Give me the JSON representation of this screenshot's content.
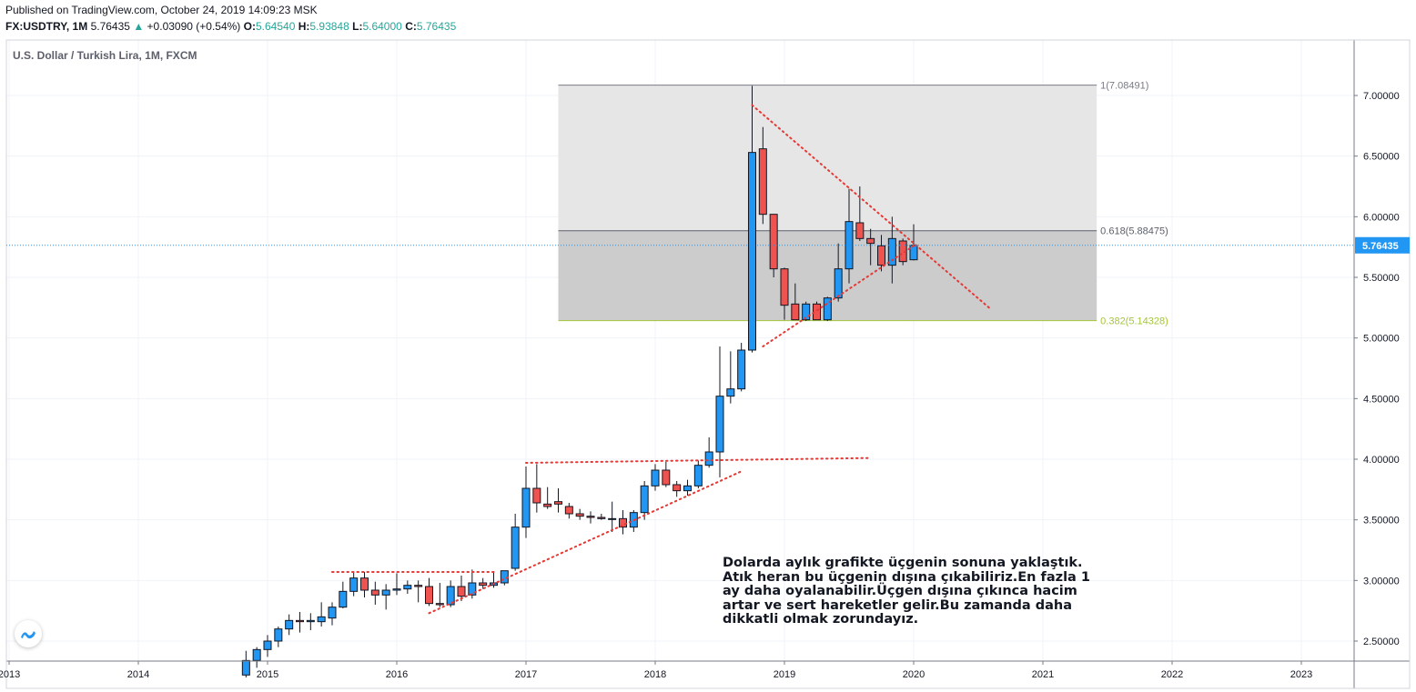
{
  "header": {
    "published": "Published on TradingView.com, October 24, 2019 14:09:23 MSK",
    "symbol": "FX:USDTRY, 1M",
    "last": "5.76435",
    "change_arrow": "▲",
    "change": "+0.03090 (+0.54%)",
    "o_label": "O:",
    "o_value": "5.64540",
    "h_label": "H:",
    "h_value": "5.93848",
    "l_label": "L:",
    "l_value": "5.64000",
    "c_label": "C:",
    "c_value": "5.76435"
  },
  "chart_title": "U.S. Dollar / Turkish Lira, 1M, FXCM",
  "note": "Dolarda aylık grafikte üçgenin sonuna yaklaştık.\nAtık heran bu üçgenin dışına çıkabiliriz.En fazla 1\nay daha oyalanabilir.Üçgen dışına çıkınca hacim\nartar ve sert hareketler gelir.Bu zamanda  daha\ndikkatli olmak zorundayız.",
  "logo_icon": "tradingview-logo-icon",
  "colors": {
    "up": "#2196f3",
    "down": "#ef5350",
    "wick": "#131722",
    "trend": "#e53935",
    "fib_green": "#a5c53a",
    "price_tag": "#2196f3"
  },
  "chart_data": {
    "type": "candlestick",
    "title": "U.S. Dollar / Turkish Lira, 1M, FXCM",
    "interval": "1M",
    "y_ticks": [
      "7.00000",
      "6.50000",
      "6.00000",
      "5.50000",
      "5.00000",
      "4.50000",
      "4.00000",
      "3.50000",
      "3.00000",
      "2.50000"
    ],
    "y_range": [
      2.42,
      7.35
    ],
    "x_ticks": [
      "2013",
      "2014",
      "2015",
      "2016",
      "2017",
      "2018",
      "2019",
      "2020",
      "2021",
      "2022",
      "2023"
    ],
    "x_range": [
      "2013-01",
      "2023-06"
    ],
    "grid": true,
    "last_price": "5.76435",
    "fibonacci": {
      "start": "2017-04",
      "end": "2021-06",
      "levels": [
        {
          "ratio": 1,
          "label": "1(7.08491)",
          "price": 7.08491
        },
        {
          "ratio": 0.618,
          "label": "0.618(5.88475)",
          "price": 5.88475
        },
        {
          "ratio": 0.382,
          "label": "0.382(5.14328)",
          "price": 5.14328
        }
      ]
    },
    "candles": [
      {
        "t": "2014-11",
        "o": 2.22,
        "h": 2.42,
        "l": 2.2,
        "c": 2.34
      },
      {
        "t": "2014-12",
        "o": 2.34,
        "h": 2.45,
        "l": 2.28,
        "c": 2.43
      },
      {
        "t": "2015-01",
        "o": 2.43,
        "h": 2.55,
        "l": 2.37,
        "c": 2.5
      },
      {
        "t": "2015-02",
        "o": 2.5,
        "h": 2.62,
        "l": 2.45,
        "c": 2.6
      },
      {
        "t": "2015-03",
        "o": 2.6,
        "h": 2.72,
        "l": 2.55,
        "c": 2.67
      },
      {
        "t": "2015-04",
        "o": 2.67,
        "h": 2.74,
        "l": 2.57,
        "c": 2.66
      },
      {
        "t": "2015-05",
        "o": 2.66,
        "h": 2.73,
        "l": 2.59,
        "c": 2.67
      },
      {
        "t": "2015-06",
        "o": 2.66,
        "h": 2.82,
        "l": 2.62,
        "c": 2.7
      },
      {
        "t": "2015-07",
        "o": 2.69,
        "h": 2.82,
        "l": 2.63,
        "c": 2.78
      },
      {
        "t": "2015-08",
        "o": 2.78,
        "h": 2.99,
        "l": 2.77,
        "c": 2.91
      },
      {
        "t": "2015-09",
        "o": 2.91,
        "h": 3.07,
        "l": 2.87,
        "c": 3.02
      },
      {
        "t": "2015-10",
        "o": 3.02,
        "h": 3.07,
        "l": 2.86,
        "c": 2.92
      },
      {
        "t": "2015-11",
        "o": 2.92,
        "h": 2.99,
        "l": 2.8,
        "c": 2.88
      },
      {
        "t": "2015-12",
        "o": 2.88,
        "h": 2.97,
        "l": 2.76,
        "c": 2.92
      },
      {
        "t": "2016-01",
        "o": 2.92,
        "h": 3.06,
        "l": 2.88,
        "c": 2.93
      },
      {
        "t": "2016-02",
        "o": 2.93,
        "h": 3.0,
        "l": 2.89,
        "c": 2.96
      },
      {
        "t": "2016-03",
        "o": 2.96,
        "h": 3.0,
        "l": 2.82,
        "c": 2.95
      },
      {
        "t": "2016-04",
        "o": 2.95,
        "h": 3.02,
        "l": 2.79,
        "c": 2.81
      },
      {
        "t": "2016-05",
        "o": 2.81,
        "h": 2.98,
        "l": 2.78,
        "c": 2.8
      },
      {
        "t": "2016-06",
        "o": 2.8,
        "h": 3.0,
        "l": 2.78,
        "c": 2.95
      },
      {
        "t": "2016-07",
        "o": 2.95,
        "h": 3.04,
        "l": 2.83,
        "c": 2.87
      },
      {
        "t": "2016-08",
        "o": 2.88,
        "h": 3.09,
        "l": 2.85,
        "c": 2.98
      },
      {
        "t": "2016-09",
        "o": 2.98,
        "h": 3.02,
        "l": 2.93,
        "c": 2.96
      },
      {
        "t": "2016-10",
        "o": 2.96,
        "h": 3.07,
        "l": 2.94,
        "c": 2.98
      },
      {
        "t": "2016-11",
        "o": 2.98,
        "h": 3.08,
        "l": 2.96,
        "c": 3.08
      },
      {
        "t": "2016-12",
        "o": 3.1,
        "h": 3.55,
        "l": 3.08,
        "c": 3.44
      },
      {
        "t": "2017-01",
        "o": 3.44,
        "h": 3.94,
        "l": 3.35,
        "c": 3.76
      },
      {
        "t": "2017-02",
        "o": 3.76,
        "h": 3.96,
        "l": 3.56,
        "c": 3.64
      },
      {
        "t": "2017-03",
        "o": 3.63,
        "h": 3.77,
        "l": 3.59,
        "c": 3.61
      },
      {
        "t": "2017-04",
        "o": 3.65,
        "h": 3.76,
        "l": 3.56,
        "c": 3.63
      },
      {
        "t": "2017-05",
        "o": 3.61,
        "h": 3.64,
        "l": 3.51,
        "c": 3.55
      },
      {
        "t": "2017-06",
        "o": 3.55,
        "h": 3.59,
        "l": 3.5,
        "c": 3.53
      },
      {
        "t": "2017-07",
        "o": 3.53,
        "h": 3.57,
        "l": 3.47,
        "c": 3.52
      },
      {
        "t": "2017-08",
        "o": 3.52,
        "h": 3.55,
        "l": 3.5,
        "c": 3.51
      },
      {
        "t": "2017-09",
        "o": 3.51,
        "h": 3.65,
        "l": 3.4,
        "c": 3.51
      },
      {
        "t": "2017-10",
        "o": 3.51,
        "h": 3.58,
        "l": 3.38,
        "c": 3.44
      },
      {
        "t": "2017-11",
        "o": 3.44,
        "h": 3.58,
        "l": 3.4,
        "c": 3.56
      },
      {
        "t": "2017-12",
        "o": 3.56,
        "h": 3.82,
        "l": 3.5,
        "c": 3.78
      },
      {
        "t": "2018-01",
        "o": 3.78,
        "h": 3.96,
        "l": 3.74,
        "c": 3.91
      },
      {
        "t": "2018-02",
        "o": 3.91,
        "h": 3.98,
        "l": 3.77,
        "c": 3.79
      },
      {
        "t": "2018-03",
        "o": 3.79,
        "h": 3.82,
        "l": 3.69,
        "c": 3.74
      },
      {
        "t": "2018-04",
        "o": 3.74,
        "h": 3.83,
        "l": 3.7,
        "c": 3.78
      },
      {
        "t": "2018-05",
        "o": 3.78,
        "h": 3.99,
        "l": 3.76,
        "c": 3.95
      },
      {
        "t": "2018-06",
        "o": 3.95,
        "h": 4.18,
        "l": 3.93,
        "c": 4.06
      },
      {
        "t": "2018-07",
        "o": 4.06,
        "h": 4.93,
        "l": 3.85,
        "c": 4.52
      },
      {
        "t": "2018-08",
        "o": 4.52,
        "h": 4.89,
        "l": 4.46,
        "c": 4.58
      },
      {
        "t": "2018-09",
        "o": 4.58,
        "h": 4.96,
        "l": 4.56,
        "c": 4.9
      },
      {
        "t": "2018-10",
        "o": 4.9,
        "h": 7.08,
        "l": 4.88,
        "c": 6.53
      },
      {
        "t": "2018-11",
        "o": 6.56,
        "h": 6.74,
        "l": 5.94,
        "c": 6.02
      },
      {
        "t": "2018-12",
        "o": 6.02,
        "h": 6.02,
        "l": 5.5,
        "c": 5.57
      },
      {
        "t": "2019-01",
        "o": 5.57,
        "h": 5.58,
        "l": 5.15,
        "c": 5.27
      },
      {
        "t": "2019-02",
        "o": 5.28,
        "h": 5.45,
        "l": 5.15,
        "c": 5.15
      },
      {
        "t": "2019-03",
        "o": 5.15,
        "h": 5.3,
        "l": 5.14,
        "c": 5.28
      },
      {
        "t": "2019-04",
        "o": 5.28,
        "h": 5.3,
        "l": 5.15,
        "c": 5.15
      },
      {
        "t": "2019-05",
        "o": 5.15,
        "h": 5.34,
        "l": 5.14,
        "c": 5.33
      },
      {
        "t": "2019-06",
        "o": 5.33,
        "h": 5.78,
        "l": 5.3,
        "c": 5.57
      },
      {
        "t": "2019-07",
        "o": 5.57,
        "h": 6.23,
        "l": 5.45,
        "c": 5.96
      },
      {
        "t": "2019-08",
        "o": 5.95,
        "h": 6.25,
        "l": 5.8,
        "c": 5.82
      },
      {
        "t": "2019-09",
        "o": 5.82,
        "h": 5.9,
        "l": 5.6,
        "c": 5.78
      },
      {
        "t": "2019-10",
        "o": 5.76,
        "h": 5.85,
        "l": 5.55,
        "c": 5.6
      },
      {
        "t": "2019-11",
        "o": 5.6,
        "h": 6.0,
        "l": 5.45,
        "c": 5.82
      },
      {
        "t": "2019-12",
        "o": 5.8,
        "h": 5.82,
        "l": 5.6,
        "c": 5.63
      },
      {
        "t": "2020-01",
        "o": 5.645,
        "h": 5.938,
        "l": 5.64,
        "c": 5.764
      }
    ],
    "trendlines": [
      {
        "from": [
          "2018-10",
          6.92
        ],
        "to": [
          "2020-08",
          5.25
        ]
      },
      {
        "from": [
          "2018-11",
          4.93
        ],
        "to": [
          "2020-01",
          5.76
        ]
      },
      {
        "from": [
          "2015-07",
          3.07
        ],
        "to": [
          "2016-10",
          3.07
        ]
      },
      {
        "from": [
          "2016-04",
          2.73
        ],
        "to": [
          "2018-09",
          3.9
        ]
      },
      {
        "from": [
          "2017-01",
          3.97
        ],
        "to": [
          "2019-09",
          4.01
        ]
      }
    ]
  }
}
